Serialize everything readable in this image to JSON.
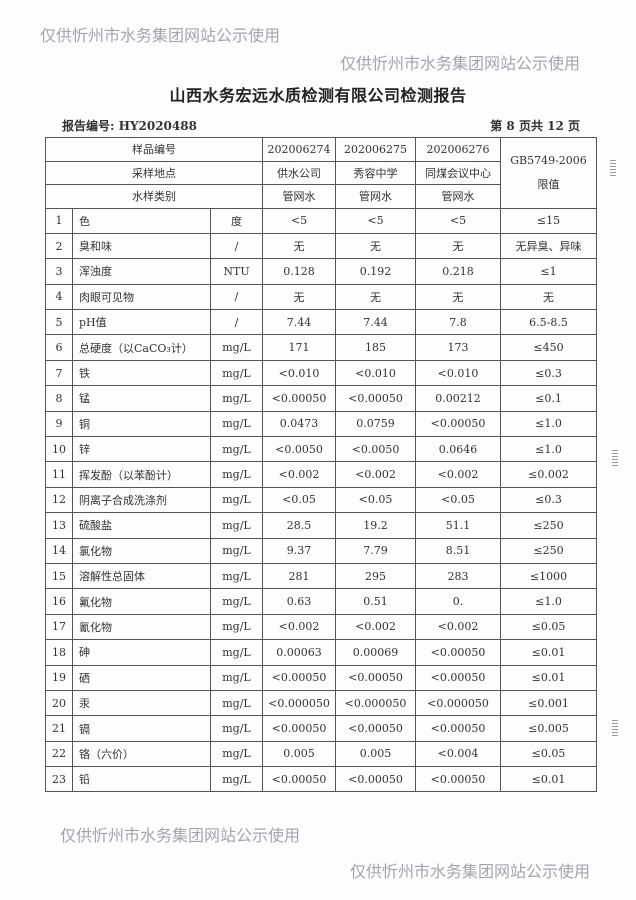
{
  "title": "山西水务宏远水质检测有限公司检测报告",
  "report_no": "报告编号: HY2020488",
  "page_no": "第 8 页共 12 页",
  "watermark": "仅供忻州市水务集团网站公示使用",
  "header": {
    "sample_no_label": "样品编号",
    "site_label": "采样地点",
    "type_label": "水样类别",
    "standard_label": "GB5749-2006 限值",
    "samples": [
      {
        "no": "202006274",
        "site": "供水公司",
        "type": "管网水"
      },
      {
        "no": "202006275",
        "site": "秀容中学",
        "type": "管网水"
      },
      {
        "no": "202006276",
        "site": "同煤会议中心",
        "type": "管网水"
      }
    ]
  },
  "rows": [
    {
      "no": "1",
      "name": "色",
      "unit": "度",
      "v": [
        "<5",
        "<5",
        "<5"
      ],
      "limit": "≤15"
    },
    {
      "no": "2",
      "name": "臭和味",
      "unit": "/",
      "v": [
        "无",
        "无",
        "无"
      ],
      "limit": "无异臭、异味"
    },
    {
      "no": "3",
      "name": "浑浊度",
      "unit": "NTU",
      "v": [
        "0.128",
        "0.192",
        "0.218"
      ],
      "limit": "≤1"
    },
    {
      "no": "4",
      "name": "肉眼可见物",
      "unit": "/",
      "v": [
        "无",
        "无",
        "无"
      ],
      "limit": "无"
    },
    {
      "no": "5",
      "name": "pH值",
      "unit": "/",
      "v": [
        "7.44",
        "7.44",
        "7.8"
      ],
      "limit": "6.5-8.5"
    },
    {
      "no": "6",
      "name": "总硬度（以CaCO₃计）",
      "unit": "mg/L",
      "v": [
        "171",
        "185",
        "173"
      ],
      "limit": "≤450"
    },
    {
      "no": "7",
      "name": "铁",
      "unit": "mg/L",
      "v": [
        "<0.010",
        "<0.010",
        "<0.010"
      ],
      "limit": "≤0.3"
    },
    {
      "no": "8",
      "name": "锰",
      "unit": "mg/L",
      "v": [
        "<0.00050",
        "<0.00050",
        "0.00212"
      ],
      "limit": "≤0.1"
    },
    {
      "no": "9",
      "name": "铜",
      "unit": "mg/L",
      "v": [
        "0.0473",
        "0.0759",
        "<0.00050"
      ],
      "limit": "≤1.0"
    },
    {
      "no": "10",
      "name": "锌",
      "unit": "mg/L",
      "v": [
        "<0.0050",
        "<0.0050",
        "0.0646"
      ],
      "limit": "≤1.0"
    },
    {
      "no": "11",
      "name": "挥发酚（以苯酚计）",
      "unit": "mg/L",
      "v": [
        "<0.002",
        "<0.002",
        "<0.002"
      ],
      "limit": "≤0.002"
    },
    {
      "no": "12",
      "name": "阴离子合成洗涤剂",
      "unit": "mg/L",
      "v": [
        "<0.05",
        "<0.05",
        "<0.05"
      ],
      "limit": "≤0.3"
    },
    {
      "no": "13",
      "name": "硫酸盐",
      "unit": "mg/L",
      "v": [
        "28.5",
        "19.2",
        "51.1"
      ],
      "limit": "≤250"
    },
    {
      "no": "14",
      "name": "氯化物",
      "unit": "mg/L",
      "v": [
        "9.37",
        "7.79",
        "8.51"
      ],
      "limit": "≤250"
    },
    {
      "no": "15",
      "name": "溶解性总固体",
      "unit": "mg/L",
      "v": [
        "281",
        "295",
        "283"
      ],
      "limit": "≤1000"
    },
    {
      "no": "16",
      "name": "氟化物",
      "unit": "mg/L",
      "v": [
        "0.63",
        "0.51",
        "0."
      ],
      "limit": "≤1.0"
    },
    {
      "no": "17",
      "name": "氰化物",
      "unit": "mg/L",
      "v": [
        "<0.002",
        "<0.002",
        "<0.002"
      ],
      "limit": "≤0.05"
    },
    {
      "no": "18",
      "name": "砷",
      "unit": "mg/L",
      "v": [
        "0.00063",
        "0.00069",
        "<0.00050"
      ],
      "limit": "≤0.01"
    },
    {
      "no": "19",
      "name": "硒",
      "unit": "mg/L",
      "v": [
        "<0.00050",
        "<0.00050",
        "<0.00050"
      ],
      "limit": "≤0.01"
    },
    {
      "no": "20",
      "name": "汞",
      "unit": "mg/L",
      "v": [
        "<0.000050",
        "<0.000050",
        "<0.000050"
      ],
      "limit": "≤0.001"
    },
    {
      "no": "21",
      "name": "镉",
      "unit": "mg/L",
      "v": [
        "<0.00050",
        "<0.00050",
        "<0.00050"
      ],
      "limit": "≤0.005"
    },
    {
      "no": "22",
      "name": "铬（六价）",
      "unit": "mg/L",
      "v": [
        "0.005",
        "0.005",
        "<0.004"
      ],
      "limit": "≤0.05"
    },
    {
      "no": "23",
      "name": "铅",
      "unit": "mg/L",
      "v": [
        "<0.00050",
        "<0.00050",
        "<0.00050"
      ],
      "limit": "≤0.01"
    }
  ]
}
